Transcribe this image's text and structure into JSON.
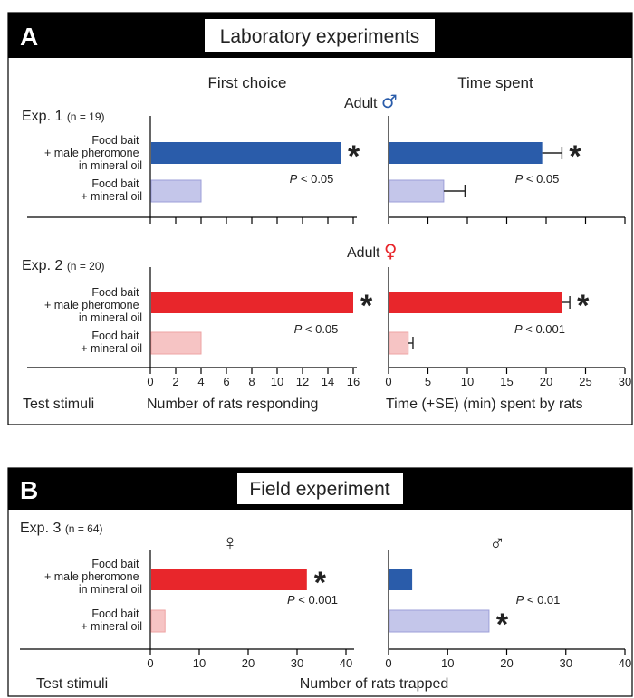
{
  "panels": [
    {
      "letter": "A",
      "title": "Laboratory experiments",
      "column_titles": [
        "First choice",
        "Time spent"
      ],
      "footer": {
        "stimuli_label": "Test stimuli",
        "left_axis_label": "Number of rats responding",
        "right_axis_label": "Time (+SE) (min) spent by rats"
      },
      "left_ticks": [
        "0",
        "2",
        "4",
        "6",
        "8",
        "10",
        "12",
        "14",
        "16"
      ],
      "right_ticks": [
        "0",
        "5",
        "10",
        "15",
        "20",
        "25",
        "30"
      ],
      "experiments": [
        {
          "label": "Exp. 1",
          "n": "(n = 19)",
          "sex_label": "Adult",
          "sex_symbol": "♂",
          "sex_color": "#2a5caa",
          "p_left": "< 0.05",
          "p_right": "< 0.05",
          "stimuli": [
            "Food bait\n+ male pheromone\nin mineral oil",
            "Food bait\n+ mineral oil"
          ]
        },
        {
          "label": "Exp. 2",
          "n": "(n = 20)",
          "sex_label": "Adult",
          "sex_symbol": "♀",
          "sex_color": "#e8262b",
          "p_left": "< 0.05",
          "p_right": "< 0.001",
          "stimuli": [
            "Food bait\n+ male pheromone\nin mineral oil",
            "Food bait\n+ mineral oil"
          ]
        }
      ]
    },
    {
      "letter": "B",
      "title": "Field experiment",
      "footer": {
        "stimuli_label": "Test stimuli",
        "axis_label": "Number of rats trapped"
      },
      "left_ticks": [
        "0",
        "10",
        "20",
        "30",
        "40"
      ],
      "right_ticks": [
        "0",
        "10",
        "20",
        "30",
        "40"
      ],
      "experiments": [
        {
          "label": "Exp. 3",
          "n": "(n = 64)",
          "left_symbol": "♀",
          "left_color": "#e8262b",
          "right_symbol": "♂",
          "right_color": "#2a5caa",
          "p_left": "< 0.001",
          "p_right": "< 0.01",
          "stimuli": [
            "Food bait\n+ male pheromone\nin mineral oil",
            "Food bait\n+ mineral oil"
          ]
        }
      ]
    }
  ],
  "chart_data": [
    {
      "type": "bar",
      "title": "First choice",
      "subtitle": "Exp. 1 (n = 19), Adult ♂",
      "xlabel": "Number of rats responding",
      "categories": [
        "Food bait + male pheromone in mineral oil",
        "Food bait + mineral oil"
      ],
      "values": [
        15,
        4
      ],
      "xlim": [
        0,
        16
      ],
      "significant": [
        true,
        false
      ],
      "p_value": "P < 0.05",
      "colors": [
        "#2a5caa",
        "#c4c6ea"
      ]
    },
    {
      "type": "bar",
      "title": "Time spent",
      "subtitle": "Exp. 1 (n = 19), Adult ♂",
      "xlabel": "Time (+SE) (min) spent by rats",
      "categories": [
        "Food bait + male pheromone in mineral oil",
        "Food bait + mineral oil"
      ],
      "values": [
        19.5,
        7
      ],
      "errors": [
        2.5,
        2.7
      ],
      "xlim": [
        0,
        30
      ],
      "significant": [
        true,
        false
      ],
      "p_value": "P < 0.05",
      "colors": [
        "#2a5caa",
        "#c4c6ea"
      ]
    },
    {
      "type": "bar",
      "title": "First choice",
      "subtitle": "Exp. 2 (n = 20), Adult ♀",
      "xlabel": "Number of rats responding",
      "categories": [
        "Food bait + male pheromone in mineral oil",
        "Food bait + mineral oil"
      ],
      "values": [
        16,
        4
      ],
      "xlim": [
        0,
        16
      ],
      "significant": [
        true,
        false
      ],
      "p_value": "P < 0.05",
      "colors": [
        "#e8262b",
        "#f6c4c4"
      ]
    },
    {
      "type": "bar",
      "title": "Time spent",
      "subtitle": "Exp. 2 (n = 20), Adult ♀",
      "xlabel": "Time (+SE) (min) spent by rats",
      "categories": [
        "Food bait + male pheromone in mineral oil",
        "Food bait + mineral oil"
      ],
      "values": [
        22,
        2.5
      ],
      "errors": [
        1,
        0.6
      ],
      "xlim": [
        0,
        30
      ],
      "significant": [
        true,
        false
      ],
      "p_value": "P < 0.001",
      "colors": [
        "#e8262b",
        "#f6c4c4"
      ]
    },
    {
      "type": "bar",
      "title": "Field experiment",
      "subtitle": "Exp. 3 (n = 64), ♀",
      "xlabel": "Number of rats trapped",
      "categories": [
        "Food bait + male pheromone in mineral oil",
        "Food bait + mineral oil"
      ],
      "values": [
        32,
        3
      ],
      "xlim": [
        0,
        40
      ],
      "significant": [
        true,
        false
      ],
      "p_value": "P < 0.001",
      "colors": [
        "#e8262b",
        "#f6c4c4"
      ]
    },
    {
      "type": "bar",
      "title": "Field experiment",
      "subtitle": "Exp. 3 (n = 64), ♂",
      "xlabel": "Number of rats trapped",
      "categories": [
        "Food bait + male pheromone in mineral oil",
        "Food bait + mineral oil"
      ],
      "values": [
        4,
        17
      ],
      "xlim": [
        0,
        40
      ],
      "significant": [
        false,
        true
      ],
      "p_value": "P < 0.01",
      "colors": [
        "#2a5caa",
        "#c4c6ea"
      ]
    }
  ]
}
